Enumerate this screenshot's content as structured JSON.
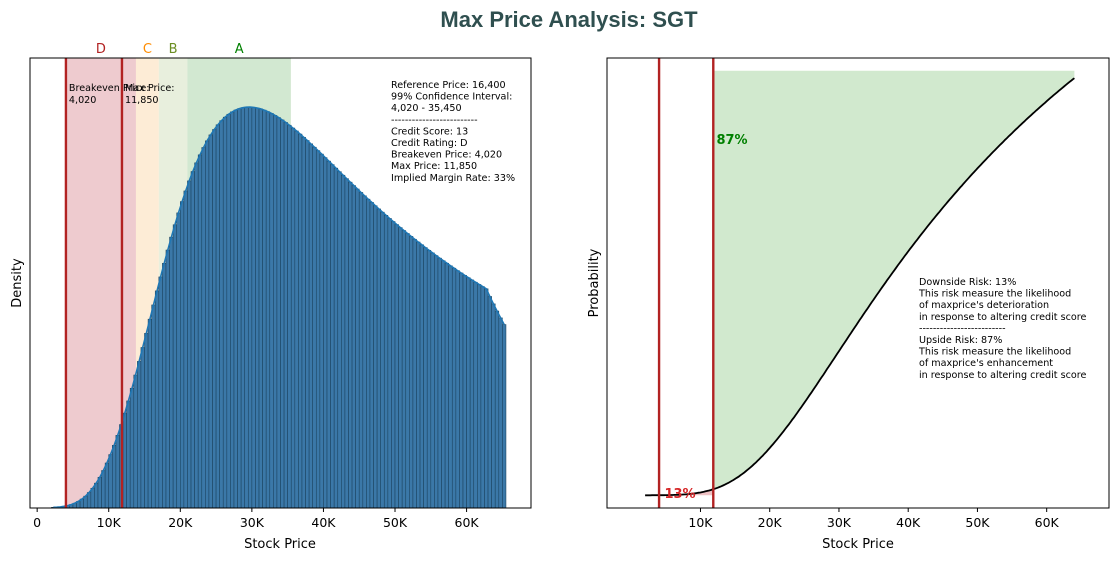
{
  "title": "Max Price Analysis: SGT",
  "colors": {
    "title": "#2f4f4f",
    "bar_fill": "#3b78a8",
    "bar_edge": "#1c4562",
    "kde": "#1f77b4",
    "vline": "#b22222",
    "cdf": "#000000",
    "zone_D": "#d98b95",
    "zone_C": "#fbd5a3",
    "zone_B": "#cbdcb4",
    "zone_A": "#9ccb98",
    "label_D": "#b22222",
    "label_C": "#ff8c00",
    "label_B": "#6b8e23",
    "label_A": "#008000",
    "down_fill": "#e8a8ad",
    "up_fill": "#b8ddb4",
    "down_text": "#d62728",
    "up_text": "#008000"
  },
  "chart_data": [
    {
      "type": "bar",
      "subtype": "histogram-with-kde",
      "xlabel": "Stock Price",
      "ylabel": "Density",
      "xlim": [
        -1000,
        69000
      ],
      "ylim": [
        0,
        1.0
      ],
      "x_ticks": [
        0,
        10000,
        20000,
        30000,
        40000,
        50000,
        60000
      ],
      "x_tick_labels": [
        "0",
        "10K",
        "20K",
        "30K",
        "40K",
        "50K",
        "60K"
      ],
      "y_ticks_visible": false,
      "zones": [
        {
          "label": "D",
          "from": 4020,
          "to": 13800,
          "color_key": "zone_D"
        },
        {
          "label": "C",
          "from": 13800,
          "to": 17000,
          "color_key": "zone_C"
        },
        {
          "label": "B",
          "from": 17000,
          "to": 21000,
          "color_key": "zone_B"
        },
        {
          "label": "A",
          "from": 21000,
          "to": 35450,
          "color_key": "zone_A"
        }
      ],
      "vlines": [
        {
          "x": 4020,
          "label": "Breakeven Price:",
          "value": "4,020"
        },
        {
          "x": 11850,
          "label": "Max Price:",
          "value": "11,850"
        }
      ],
      "histogram": {
        "bin_start": 2000,
        "bin_width": 500,
        "heights": [
          0.0011,
          0.0017,
          0.0025,
          0.0037,
          0.0053,
          0.0076,
          0.0106,
          0.0146,
          0.0198,
          0.0263,
          0.0343,
          0.0439,
          0.0552,
          0.0683,
          0.0833,
          0.1,
          0.1187,
          0.1392,
          0.1615,
          0.1854,
          0.2109,
          0.2379,
          0.2661,
          0.2955,
          0.3258,
          0.3567,
          0.3881,
          0.4196,
          0.4512,
          0.4825,
          0.5135,
          0.5438,
          0.5733,
          0.6019,
          0.6294,
          0.6558,
          0.6809,
          0.7046,
          0.7269,
          0.7477,
          0.767,
          0.7848,
          0.8011,
          0.8159,
          0.8292,
          0.8411,
          0.8516,
          0.8607,
          0.8685,
          0.875,
          0.8803,
          0.8844,
          0.8875,
          0.8896,
          0.8907,
          0.8909,
          0.8903,
          0.8889,
          0.8868,
          0.8841,
          0.8807,
          0.8768,
          0.8724,
          0.8676,
          0.8623,
          0.8566,
          0.8506,
          0.8443,
          0.8377,
          0.8309,
          0.8238,
          0.8166,
          0.8092,
          0.8017,
          0.7941,
          0.7864,
          0.7786,
          0.7708,
          0.763,
          0.7552,
          0.7473,
          0.7395,
          0.7318,
          0.7241,
          0.7164,
          0.7088,
          0.7012,
          0.6937,
          0.6863,
          0.679,
          0.6717,
          0.6645,
          0.6574,
          0.6504,
          0.6434,
          0.6366,
          0.6298,
          0.6231,
          0.6165,
          0.61,
          0.6036,
          0.5972,
          0.591,
          0.5848,
          0.5787,
          0.5727,
          0.5668,
          0.5609,
          0.5552,
          0.5495,
          0.5439,
          0.5383,
          0.5329,
          0.5275,
          0.5222,
          0.517,
          0.5118,
          0.5067,
          0.5017,
          0.4968,
          0.4919,
          0.4871
        ]
      },
      "kde_color_key": "kde",
      "annotation_lines": [
        "Reference Price: 16,400",
        "99% Confidence Interval:",
        "4,020 - 35,450",
        "-------------------------",
        "Credit Score: 13",
        "Credit Rating: D",
        "Breakeven Price: 4,020",
        "Max Price: 11,850",
        "Implied Margin Rate: 33%"
      ]
    },
    {
      "type": "line",
      "subtype": "cdf",
      "xlabel": "Stock Price",
      "ylabel": "Probability",
      "xlim": [
        -3500,
        69000
      ],
      "ylim": [
        -0.03,
        1.03
      ],
      "x_ticks": [
        10000,
        20000,
        30000,
        40000,
        50000,
        60000
      ],
      "x_tick_labels": [
        "10K",
        "20K",
        "30K",
        "40K",
        "50K",
        "60K"
      ],
      "y_ticks_visible": false,
      "vlines": [
        4020,
        11850
      ],
      "downside_pct": "13%",
      "upside_pct": "87%",
      "annotation_lines": [
        "Downside Risk: 13%",
        "This risk measure the likelihood",
        "of maxprice's deterioration",
        "in response to altering credit score",
        "-------------------------",
        "Upside Risk: 87%",
        "This risk measure the likelihood",
        "of maxprice's enhancement",
        "in response to altering credit score"
      ]
    }
  ]
}
